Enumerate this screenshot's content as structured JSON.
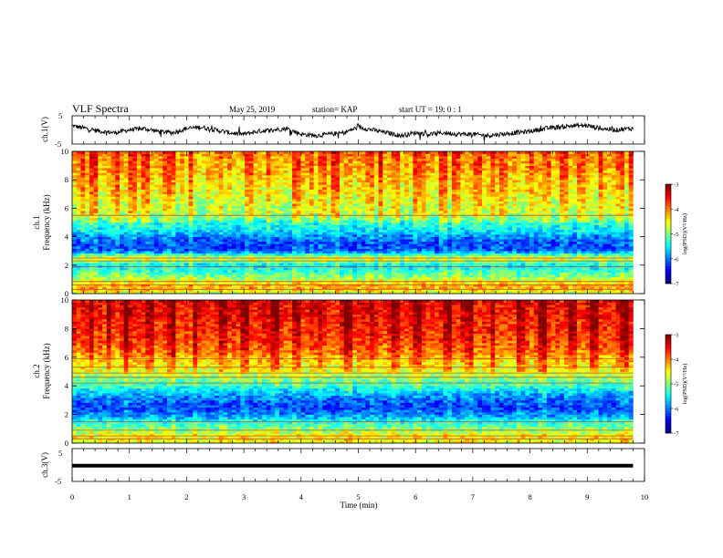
{
  "header": {
    "title": "VLF Spectra",
    "date": "May 25, 2019",
    "station": "station= KAP",
    "start": "start  UT  =   19: 0   : 1"
  },
  "colors": {
    "jet_low": "#00007f",
    "jet_mid_low": "#0070ff",
    "jet_mid": "#00ff80",
    "jet_mid_high": "#ffff00",
    "jet_high": "#ff2000",
    "waveform": "#000000"
  },
  "chart_data": [
    {
      "type": "line",
      "name": "ch1-waveform",
      "ylabel": "ch.1(V)",
      "ylim": [
        -5,
        5
      ],
      "y_ticks": [
        "5",
        "-5"
      ],
      "x": [
        0,
        0.25,
        0.5,
        0.75,
        1,
        1.25,
        1.5,
        1.75,
        2,
        2.25,
        2.5,
        2.75,
        3,
        3.25,
        3.5,
        3.75,
        4,
        4.25,
        4.5,
        4.75,
        5,
        5.25,
        5.5,
        5.75,
        6,
        6.25,
        6.5,
        6.75,
        7,
        7.25,
        7.5,
        7.75,
        8,
        8.25,
        8.5,
        8.75,
        9,
        9.25,
        9.5,
        9.75
      ],
      "values": [
        1.5,
        0.5,
        -0.5,
        -1.0,
        0.0,
        0.5,
        -0.5,
        -1.0,
        0.5,
        1.0,
        0.0,
        -1.0,
        -1.5,
        -0.5,
        0.0,
        0.5,
        -1.5,
        -2.0,
        -1.5,
        -1.0,
        1.0,
        0.0,
        -1.0,
        -2.0,
        -1.0,
        -1.5,
        -1.0,
        -1.5,
        -1.5,
        -2.0,
        -1.5,
        -1.0,
        -0.5,
        0.5,
        1.0,
        1.5,
        1.5,
        0.5,
        0.0,
        0.5
      ]
    },
    {
      "type": "heatmap",
      "name": "ch1-spectrogram",
      "ylabel_top": "ch.1",
      "ylabel": "Frequency  (kHz)",
      "ylim": [
        0,
        10
      ],
      "y_ticks": [
        "0",
        "2",
        "4",
        "6",
        "8",
        "10"
      ],
      "colorbar_label": "log(PSD)(V²/Hz)",
      "colorbar_ticks": [
        "-3",
        "-4",
        "-5",
        "-6",
        "-7"
      ],
      "zlim": [
        -7,
        -3
      ],
      "freq_kHz": [
        0,
        0.5,
        1,
        1.5,
        2,
        2.5,
        3,
        3.5,
        4,
        4.5,
        5,
        5.5,
        6,
        6.5,
        7,
        7.5,
        8,
        8.5,
        9,
        9.5,
        10
      ],
      "mean_log_psd": [
        -4.8,
        -4.2,
        -4.8,
        -5.3,
        -5.6,
        -4.6,
        -6.2,
        -6.3,
        -6.0,
        -5.6,
        -5.4,
        -4.9,
        -4.8,
        -4.7,
        -4.6,
        -4.5,
        -4.4,
        -4.3,
        -4.2,
        -4.2,
        -4.0
      ],
      "lines_kHz": [
        0.3,
        0.6,
        0.85,
        1.9,
        2.3,
        2.5,
        5.5
      ],
      "time_bursts_min": [
        0.15,
        0.35,
        0.7,
        1.0,
        1.25,
        1.6,
        1.7,
        2.05,
        2.55,
        3.05,
        3.4,
        3.9,
        4.15,
        4.35,
        4.55,
        5.15,
        5.35,
        5.6,
        6.0,
        6.1,
        6.45,
        6.65,
        7.05,
        7.3,
        7.5,
        8.0,
        8.25,
        8.55,
        8.85,
        9.2,
        9.55,
        9.75
      ]
    },
    {
      "type": "heatmap",
      "name": "ch2-spectrogram",
      "ylabel_top": "ch.2",
      "ylabel": "Frequency  (kHz)",
      "ylim": [
        0,
        10
      ],
      "y_ticks": [
        "0",
        "2",
        "4",
        "6",
        "8",
        "10"
      ],
      "colorbar_label": "log(PSD)(V²/Hz)",
      "colorbar_ticks": [
        "-3",
        "-4",
        "-5",
        "-6",
        "-7"
      ],
      "zlim": [
        -7,
        -3
      ],
      "freq_kHz": [
        0,
        0.5,
        1,
        1.5,
        2,
        2.5,
        3,
        3.5,
        4,
        4.5,
        5,
        5.5,
        6,
        6.5,
        7,
        7.5,
        8,
        8.5,
        9,
        9.5,
        10
      ],
      "mean_log_psd": [
        -4.6,
        -4.5,
        -5.0,
        -5.4,
        -6.0,
        -6.3,
        -6.1,
        -5.8,
        -5.3,
        -5.0,
        -4.6,
        -4.4,
        -4.2,
        -3.9,
        -3.8,
        -3.7,
        -3.6,
        -3.6,
        -3.5,
        -3.5,
        -3.4
      ],
      "lines_kHz": [
        0.3,
        0.5,
        0.9,
        1.5,
        4.2,
        4.6,
        4.9,
        5.3,
        5.9
      ],
      "time_bursts_min": [
        0.3,
        0.6,
        0.9,
        1.3,
        1.7,
        2.1,
        2.6,
        3.0,
        3.5,
        3.9,
        4.3,
        4.8,
        5.2,
        5.6,
        6.0,
        6.5,
        6.9,
        7.3,
        7.8,
        8.2,
        8.7,
        9.1,
        9.6
      ]
    },
    {
      "type": "line",
      "name": "ch3-waveform",
      "ylabel": "ch.3(V)",
      "ylim": [
        -5,
        5
      ],
      "y_ticks": [
        "5",
        "-5"
      ],
      "x": [
        0,
        9.8
      ],
      "values": [
        -0.2,
        -0.2
      ]
    }
  ],
  "x_axis": {
    "label": "Time  (min)",
    "xlim": [
      0,
      10
    ],
    "ticks": [
      "0",
      "1",
      "2",
      "3",
      "4",
      "5",
      "6",
      "7",
      "8",
      "9",
      "10"
    ],
    "data_end_min": 9.8
  }
}
